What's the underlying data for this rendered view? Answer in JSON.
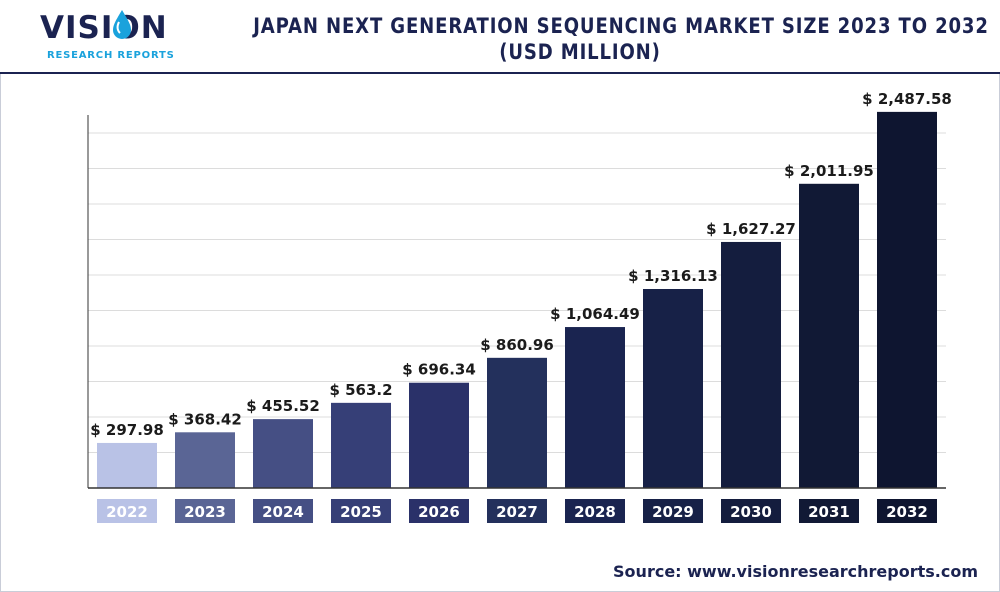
{
  "logo": {
    "brand": "VISION",
    "tagline": "RESEARCH REPORTS"
  },
  "title": {
    "line1": "JAPAN NEXT GENERATION SEQUENCING MARKET SIZE 2023 TO 2032",
    "line2": "(USD MILLION)"
  },
  "source": "Source: www.visionresearchreports.com",
  "colors": {
    "brand_navy": "#1b2351",
    "brand_blue": "#1aa2dc",
    "grid": "#dcdcdc",
    "axis": "#333333",
    "bars": [
      "#b9c2e6",
      "#5a6595",
      "#454f84",
      "#363f77",
      "#2a3169",
      "#23305c",
      "#1a2450",
      "#172147",
      "#141d3e",
      "#111935",
      "#0e1530"
    ]
  },
  "chart_data": {
    "type": "bar",
    "categories": [
      "2022",
      "2023",
      "2024",
      "2025",
      "2026",
      "2027",
      "2028",
      "2029",
      "2030",
      "2031",
      "2032"
    ],
    "values": [
      297.98,
      368.42,
      455.52,
      563.2,
      696.34,
      860.96,
      1064.49,
      1316.13,
      1627.27,
      2011.95,
      2487.58
    ],
    "data_labels": [
      "$ 297.98",
      "$ 368.42",
      "$ 455.52",
      "$ 563.2",
      "$ 696.34",
      "$ 860.96",
      "$ 1,064.49",
      "$ 1,316.13",
      "$ 1,627.27",
      "$ 2,011.95",
      "$ 2,487.58"
    ],
    "title": "JAPAN NEXT GENERATION SEQUENCING MARKET SIZE 2023 TO 2032 (USD MILLION)",
    "xlabel": "",
    "ylabel": "",
    "ylim": [
      0,
      2500
    ],
    "grid": true,
    "y_ticks_shown": false
  }
}
